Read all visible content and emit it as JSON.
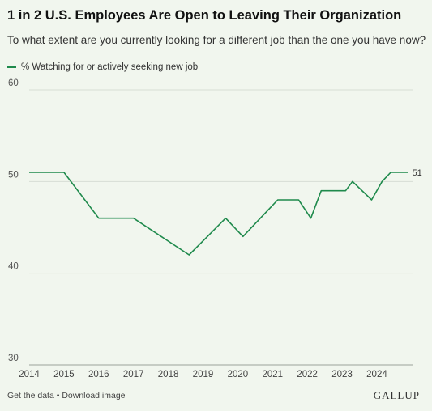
{
  "chart_data": {
    "type": "line",
    "title": "1 in 2 U.S. Employees Are Open to Leaving Their Organization",
    "subtitle": "To what extent are you currently looking for a different job than the one you have now?",
    "x_ticks": [
      "2014",
      "2015",
      "2016",
      "2017",
      "2018",
      "2019",
      "2020",
      "2021",
      "2022",
      "2023",
      "2024"
    ],
    "y_ticks": [
      60,
      50,
      40,
      30
    ],
    "xlim": [
      2014,
      2025.05
    ],
    "ylim": [
      30,
      60
    ],
    "grid": true,
    "legend_position": "top-left",
    "series": [
      {
        "name": "% Watching for or actively seeking new job",
        "color": "#1f8a4c",
        "end_label": "51",
        "x": [
          2014.0,
          2015.0,
          2016.0,
          2017.0,
          2018.6,
          2019.65,
          2020.15,
          2021.15,
          2021.75,
          2022.1,
          2022.4,
          2023.1,
          2023.3,
          2023.85,
          2024.15,
          2024.4,
          2024.9
        ],
        "y": [
          51,
          51,
          46,
          46,
          42,
          46,
          44,
          48,
          48,
          46,
          49,
          49,
          50,
          48,
          50,
          51,
          51
        ]
      }
    ]
  },
  "footer": {
    "get_data": "Get the data",
    "separator": " • ",
    "download": "Download image",
    "brand": "GALLUP"
  }
}
